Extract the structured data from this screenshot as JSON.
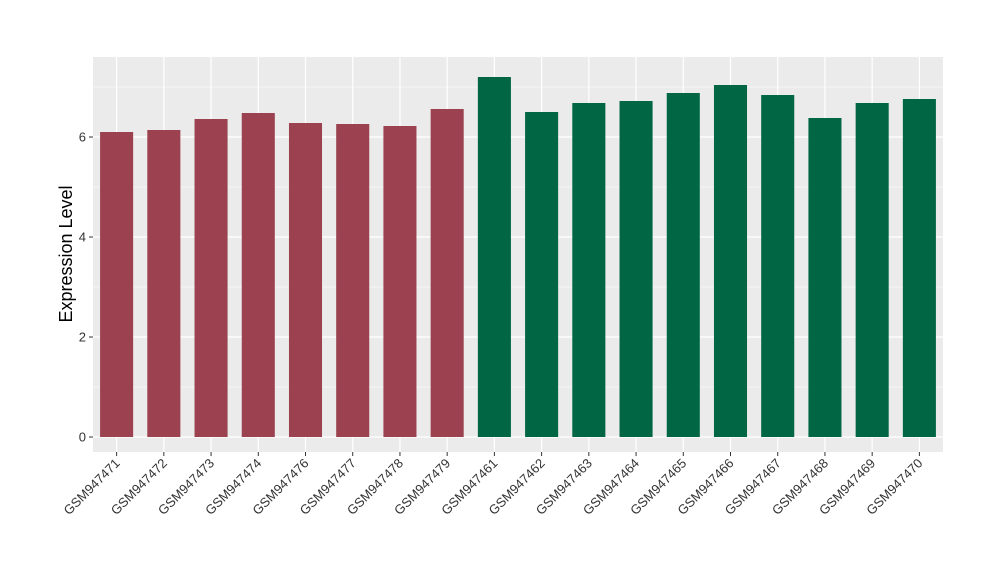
{
  "chart_data": {
    "type": "bar",
    "title": "",
    "xlabel": "",
    "ylabel": "Expression Level",
    "ylim": [
      -0.3,
      7.6
    ],
    "yticks": [
      0,
      2,
      4,
      6
    ],
    "grid": true,
    "legend": "none",
    "categories": [
      "GSM947471",
      "GSM947472",
      "GSM947473",
      "GSM947474",
      "GSM947476",
      "GSM947477",
      "GSM947478",
      "GSM947479",
      "GSM947461",
      "GSM947462",
      "GSM947463",
      "GSM947464",
      "GSM947465",
      "GSM947466",
      "GSM947467",
      "GSM947468",
      "GSM947469",
      "GSM947470"
    ],
    "values": [
      6.1,
      6.14,
      6.36,
      6.48,
      6.28,
      6.26,
      6.22,
      6.56,
      7.2,
      6.5,
      6.68,
      6.72,
      6.88,
      7.04,
      6.84,
      6.38,
      6.68,
      6.76
    ],
    "groups": [
      0,
      0,
      0,
      0,
      0,
      0,
      0,
      0,
      1,
      1,
      1,
      1,
      1,
      1,
      1,
      1,
      1,
      1
    ],
    "colors": {
      "group_0": "#9b414f",
      "group_1": "#006644",
      "panel": "#ebebeb",
      "grid": "#ffffff"
    }
  }
}
